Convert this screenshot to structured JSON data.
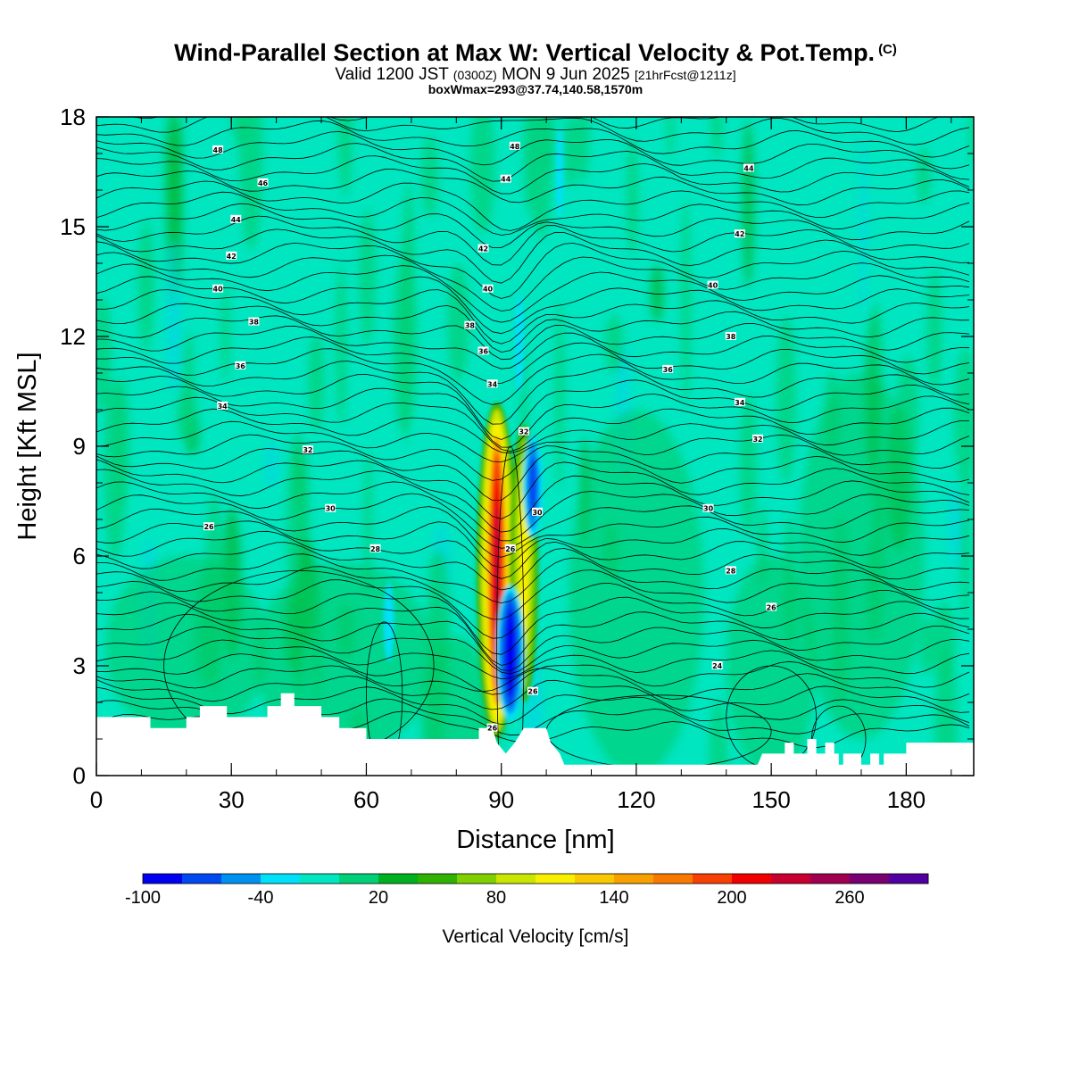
{
  "header": {
    "title": "Wind-Parallel Section at Max W: Vertical Velocity & Pot.Temp.",
    "copyright": "(C)",
    "valid_prefix": "Valid 1200 JST",
    "valid_utc": "(0300Z)",
    "valid_date": "MON 9 Jun 2025",
    "forecast": "[21hrFcst@1211z]",
    "box_info": "boxWmax=293@37.74,140.58,1570m"
  },
  "chart_data": {
    "type": "heatmap",
    "xlabel": "Distance [nm]",
    "ylabel": "Height [Kft MSL]",
    "xlim": [
      0,
      195
    ],
    "ylim": [
      0,
      18
    ],
    "x_ticks": [
      "0",
      "30",
      "60",
      "90",
      "120",
      "150",
      "180"
    ],
    "y_ticks": [
      "0",
      "3",
      "6",
      "9",
      "12",
      "15",
      "18"
    ],
    "background_field": "Vertical velocity ~0 to 20 cm/s over most of the section",
    "updraft_cores": [
      {
        "x_nm": 89,
        "y_bottom_kft": 1,
        "y_top_kft": 10.2,
        "w_max_cm_s": 293
      },
      {
        "x_nm": 95,
        "y_bottom_kft": 2,
        "y_top_kft": 9.6,
        "w_max_cm_s": 110
      }
    ],
    "downdraft_cores": [
      {
        "x_nm": 92,
        "y_bottom_kft": 1.5,
        "y_top_kft": 5.2,
        "w_min_cm_s": -100
      },
      {
        "x_nm": 97,
        "y_bottom_kft": 6.5,
        "y_top_kft": 9.3,
        "w_min_cm_s": -70
      }
    ],
    "terrain_kft": [
      [
        0,
        1.6
      ],
      [
        12,
        1.6
      ],
      [
        12,
        1.3
      ],
      [
        20,
        1.3
      ],
      [
        20,
        1.6
      ],
      [
        23,
        1.6
      ],
      [
        23,
        1.9
      ],
      [
        29,
        1.9
      ],
      [
        29,
        1.6
      ],
      [
        38,
        1.6
      ],
      [
        38,
        1.9
      ],
      [
        41,
        1.9
      ],
      [
        41,
        2.25
      ],
      [
        44,
        2.25
      ],
      [
        44,
        1.9
      ],
      [
        50,
        1.9
      ],
      [
        50,
        1.6
      ],
      [
        54,
        1.6
      ],
      [
        54,
        1.3
      ],
      [
        60,
        1.3
      ],
      [
        60,
        1.0
      ],
      [
        85,
        1.0
      ],
      [
        85,
        1.3
      ],
      [
        88,
        1.3
      ],
      [
        89,
        0.9
      ],
      [
        91,
        0.6
      ],
      [
        93,
        0.9
      ],
      [
        95,
        1.3
      ],
      [
        100,
        1.3
      ],
      [
        101,
        0.9
      ],
      [
        103,
        0.6
      ],
      [
        104,
        0.3
      ],
      [
        147,
        0.3
      ],
      [
        148,
        0.6
      ],
      [
        153,
        0.6
      ],
      [
        153,
        0.9
      ],
      [
        155,
        0.9
      ],
      [
        155,
        0.6
      ],
      [
        158,
        0.6
      ],
      [
        158,
        1.0
      ],
      [
        160,
        1.0
      ],
      [
        160,
        0.6
      ],
      [
        162,
        0.6
      ],
      [
        162,
        0.9
      ],
      [
        164,
        0.9
      ],
      [
        164,
        0.6
      ],
      [
        165,
        0.6
      ],
      [
        165,
        0.3
      ],
      [
        166,
        0.3
      ],
      [
        166,
        0.6
      ],
      [
        170,
        0.6
      ],
      [
        170,
        0.3
      ],
      [
        172,
        0.3
      ],
      [
        172,
        0.6
      ],
      [
        174,
        0.6
      ],
      [
        174,
        0.3
      ],
      [
        175,
        0.3
      ],
      [
        175,
        0.6
      ],
      [
        180,
        0.6
      ],
      [
        180,
        0.9
      ],
      [
        195,
        0.9
      ]
    ],
    "theta_contours": {
      "labels": [
        {
          "v": "48",
          "x": 27,
          "y": 17.1
        },
        {
          "v": "46",
          "x": 37,
          "y": 16.2
        },
        {
          "v": "44",
          "x": 31,
          "y": 15.2
        },
        {
          "v": "42",
          "x": 30,
          "y": 14.2
        },
        {
          "v": "40",
          "x": 27,
          "y": 13.3
        },
        {
          "v": "38",
          "x": 35,
          "y": 12.4
        },
        {
          "v": "36",
          "x": 32,
          "y": 11.2
        },
        {
          "v": "34",
          "x": 28,
          "y": 10.1
        },
        {
          "v": "32",
          "x": 47,
          "y": 8.9
        },
        {
          "v": "30",
          "x": 52,
          "y": 7.3
        },
        {
          "v": "26",
          "x": 25,
          "y": 6.8
        },
        {
          "v": "28",
          "x": 62,
          "y": 6.2
        },
        {
          "v": "48",
          "x": 93,
          "y": 17.2
        },
        {
          "v": "44",
          "x": 91,
          "y": 16.3
        },
        {
          "v": "42",
          "x": 86,
          "y": 14.4
        },
        {
          "v": "40",
          "x": 87,
          "y": 13.3
        },
        {
          "v": "38",
          "x": 83,
          "y": 12.3
        },
        {
          "v": "36",
          "x": 86,
          "y": 11.6
        },
        {
          "v": "34",
          "x": 88,
          "y": 10.7
        },
        {
          "v": "32",
          "x": 95,
          "y": 9.4
        },
        {
          "v": "30",
          "x": 98,
          "y": 7.2
        },
        {
          "v": "26",
          "x": 92,
          "y": 6.2
        },
        {
          "v": "26",
          "x": 88,
          "y": 1.3
        },
        {
          "v": "26",
          "x": 97,
          "y": 2.3
        },
        {
          "v": "44",
          "x": 145,
          "y": 16.6
        },
        {
          "v": "42",
          "x": 143,
          "y": 14.8
        },
        {
          "v": "40",
          "x": 137,
          "y": 13.4
        },
        {
          "v": "38",
          "x": 141,
          "y": 12.0
        },
        {
          "v": "36",
          "x": 127,
          "y": 11.1
        },
        {
          "v": "34",
          "x": 143,
          "y": 10.2
        },
        {
          "v": "32",
          "x": 147,
          "y": 9.2
        },
        {
          "v": "30",
          "x": 136,
          "y": 7.3
        },
        {
          "v": "28",
          "x": 141,
          "y": 5.6
        },
        {
          "v": "26",
          "x": 150,
          "y": 4.6
        },
        {
          "v": "24",
          "x": 138,
          "y": 3.0
        }
      ]
    }
  },
  "colorbar": {
    "title": "Vertical Velocity [cm/s]",
    "labels": [
      "-100",
      "-40",
      "20",
      "80",
      "140",
      "200",
      "260"
    ],
    "colors": [
      "#0000f0",
      "#0048f0",
      "#0090f0",
      "#00e0f8",
      "#00e6c0",
      "#00d078",
      "#00b020",
      "#30b000",
      "#80d000",
      "#c8e600",
      "#f8f000",
      "#f8c800",
      "#f8a000",
      "#f87800",
      "#f84000",
      "#f00000",
      "#c80030",
      "#a00050",
      "#780070",
      "#5000a0"
    ]
  }
}
